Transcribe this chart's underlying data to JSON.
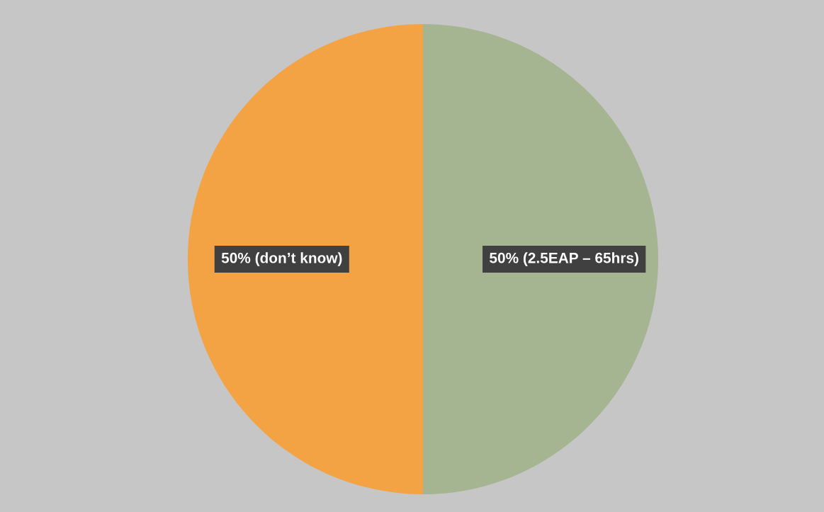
{
  "chart_data": {
    "type": "pie",
    "categories": [
      "(2.5EAP – 65hrs)",
      "(don’t know)"
    ],
    "values": [
      50,
      50
    ],
    "colors": [
      "#a5b592",
      "#f3a344"
    ],
    "value_labels": [
      "50%",
      "50%"
    ],
    "legend": false
  }
}
